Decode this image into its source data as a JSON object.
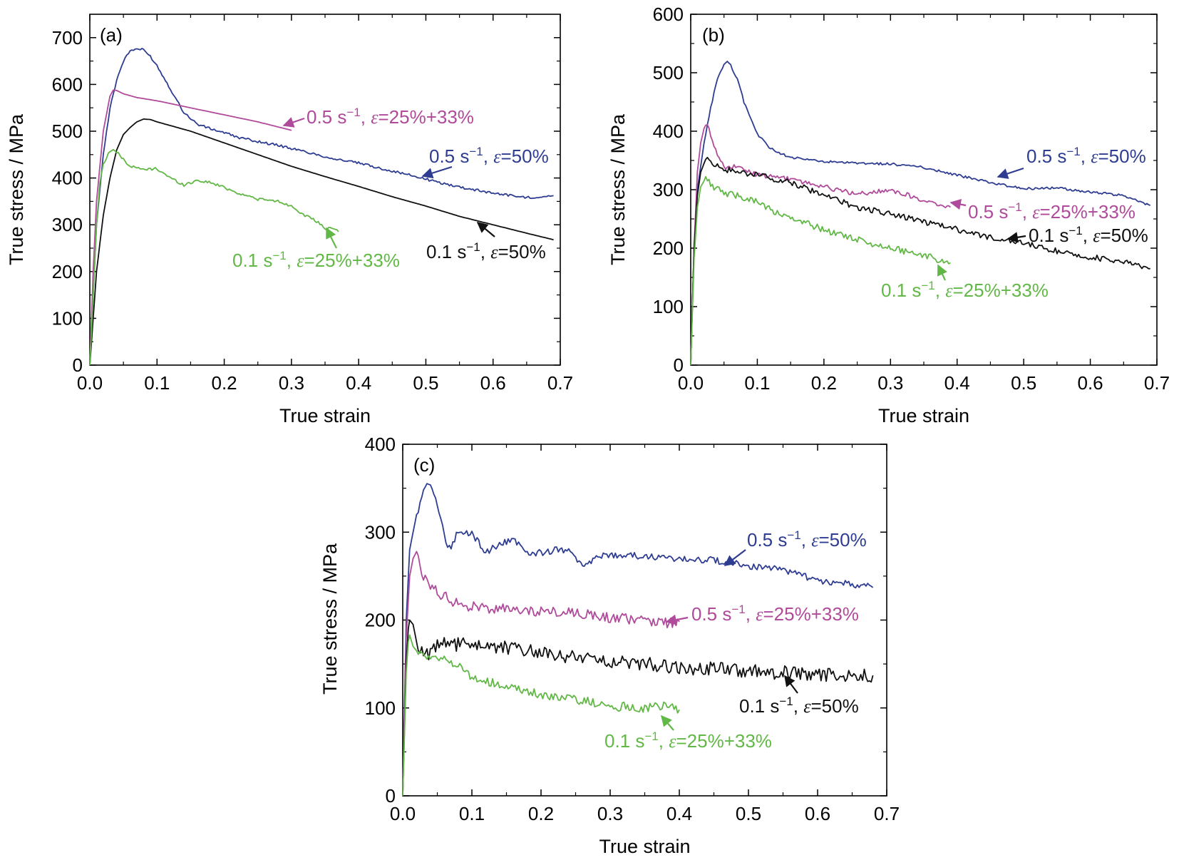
{
  "chart_data": [
    {
      "type": "line",
      "panel_label": "(a)",
      "xlabel": "True strain",
      "ylabel": "True stress / MPa",
      "xlim": [
        0,
        0.7
      ],
      "ylim": [
        0,
        750
      ],
      "xticks": [
        "0.0",
        "0.1",
        "0.2",
        "0.3",
        "0.4",
        "0.5",
        "0.6",
        "0.7"
      ],
      "yticks": [
        "0",
        "100",
        "200",
        "300",
        "400",
        "500",
        "600",
        "700"
      ],
      "grid": false,
      "series": [
        {
          "name": "0.5 s⁻¹, ε=50%",
          "color": "#2e3d92",
          "noise": 2.5,
          "x": [
            0,
            0.005,
            0.01,
            0.02,
            0.03,
            0.04,
            0.05,
            0.06,
            0.07,
            0.08,
            0.09,
            0.1,
            0.12,
            0.14,
            0.16,
            0.18,
            0.2,
            0.22,
            0.25,
            0.28,
            0.3,
            0.33,
            0.36,
            0.4,
            0.44,
            0.48,
            0.52,
            0.56,
            0.6,
            0.65,
            0.69
          ],
          "y": [
            0,
            150,
            300,
            450,
            550,
            610,
            650,
            672,
            676,
            674,
            660,
            640,
            590,
            540,
            515,
            505,
            497,
            487,
            478,
            470,
            463,
            453,
            442,
            432,
            418,
            405,
            390,
            378,
            368,
            358,
            362
          ]
        },
        {
          "name": "0.5 s⁻¹, ε=25%+33%",
          "color": "#b04a9a",
          "noise": 0,
          "x": [
            0,
            0.005,
            0.01,
            0.02,
            0.03,
            0.035,
            0.04,
            0.05,
            0.07,
            0.1,
            0.15,
            0.2,
            0.25,
            0.3
          ],
          "y": [
            0,
            200,
            350,
            500,
            575,
            588,
            587,
            580,
            572,
            565,
            550,
            535,
            520,
            502
          ]
        },
        {
          "name": "0.1 s⁻¹, ε=50%",
          "color": "#111111",
          "noise": 0,
          "x": [
            0,
            0.005,
            0.01,
            0.02,
            0.03,
            0.04,
            0.05,
            0.06,
            0.07,
            0.08,
            0.09,
            0.1,
            0.15,
            0.2,
            0.25,
            0.3,
            0.35,
            0.4,
            0.45,
            0.5,
            0.55,
            0.6,
            0.65,
            0.69
          ],
          "y": [
            0,
            100,
            200,
            320,
            400,
            460,
            493,
            508,
            520,
            526,
            525,
            520,
            500,
            475,
            450,
            425,
            403,
            382,
            360,
            340,
            318,
            300,
            282,
            268
          ]
        },
        {
          "name": "0.1 s⁻¹, ε=25%+33%",
          "color": "#62b846",
          "noise": 3,
          "x": [
            0,
            0.005,
            0.01,
            0.015,
            0.02,
            0.03,
            0.035,
            0.04,
            0.05,
            0.06,
            0.08,
            0.1,
            0.12,
            0.14,
            0.16,
            0.18,
            0.2,
            0.22,
            0.25,
            0.28,
            0.3,
            0.32,
            0.34,
            0.35,
            0.36,
            0.37
          ],
          "y": [
            0,
            150,
            300,
            390,
            430,
            458,
            460,
            455,
            440,
            425,
            418,
            420,
            400,
            385,
            395,
            390,
            380,
            368,
            355,
            350,
            340,
            320,
            305,
            290,
            295,
            285
          ]
        }
      ],
      "annotations": [
        {
          "text": "0.5 s⁻¹, ε=25%+33%",
          "color": "#b04a9a"
        },
        {
          "text": "0.5 s⁻¹, ε=50%",
          "color": "#2e3d92"
        },
        {
          "text": "0.1 s⁻¹, ε=50%",
          "color": "#111111"
        },
        {
          "text": "0.1 s⁻¹, ε=25%+33%",
          "color": "#62b846"
        }
      ]
    },
    {
      "type": "line",
      "panel_label": "(b)",
      "xlabel": "True strain",
      "ylabel": "True stress / MPa",
      "xlim": [
        0,
        0.7
      ],
      "ylim": [
        0,
        600
      ],
      "xticks": [
        "0.0",
        "0.1",
        "0.2",
        "0.3",
        "0.4",
        "0.5",
        "0.6",
        "0.7"
      ],
      "yticks": [
        "0",
        "100",
        "200",
        "300",
        "400",
        "500",
        "600"
      ],
      "grid": false,
      "series": [
        {
          "name": "0.5 s⁻¹, ε=50%",
          "color": "#2e3d92",
          "noise": 2,
          "x": [
            0,
            0.005,
            0.01,
            0.02,
            0.03,
            0.04,
            0.05,
            0.055,
            0.06,
            0.07,
            0.08,
            0.1,
            0.12,
            0.15,
            0.2,
            0.25,
            0.3,
            0.35,
            0.4,
            0.45,
            0.5,
            0.55,
            0.6,
            0.65,
            0.69
          ],
          "y": [
            0,
            200,
            300,
            380,
            440,
            490,
            515,
            518,
            512,
            490,
            450,
            395,
            370,
            355,
            348,
            345,
            344,
            338,
            325,
            312,
            302,
            303,
            296,
            290,
            273
          ]
        },
        {
          "name": "0.5 s⁻¹, ε=25%+33%",
          "color": "#b04a9a",
          "noise": 4,
          "x": [
            0,
            0.005,
            0.01,
            0.015,
            0.02,
            0.025,
            0.03,
            0.04,
            0.05,
            0.06,
            0.08,
            0.1,
            0.15,
            0.2,
            0.25,
            0.3,
            0.35,
            0.39
          ],
          "y": [
            0,
            200,
            330,
            380,
            405,
            410,
            395,
            360,
            338,
            340,
            335,
            325,
            318,
            305,
            292,
            300,
            282,
            270
          ]
        },
        {
          "name": "0.1 s⁻¹, ε=50%",
          "color": "#111111",
          "noise": 5,
          "x": [
            0,
            0.005,
            0.01,
            0.015,
            0.02,
            0.025,
            0.03,
            0.04,
            0.05,
            0.07,
            0.1,
            0.15,
            0.2,
            0.25,
            0.3,
            0.35,
            0.4,
            0.45,
            0.5,
            0.55,
            0.6,
            0.65,
            0.69
          ],
          "y": [
            0,
            200,
            290,
            330,
            345,
            352,
            348,
            340,
            335,
            330,
            325,
            312,
            290,
            270,
            258,
            245,
            232,
            218,
            208,
            195,
            185,
            177,
            165
          ]
        },
        {
          "name": "0.1 s⁻¹, ε=25%+33%",
          "color": "#62b846",
          "noise": 6,
          "x": [
            0,
            0.005,
            0.01,
            0.015,
            0.02,
            0.025,
            0.03,
            0.04,
            0.05,
            0.07,
            0.1,
            0.12,
            0.15,
            0.2,
            0.25,
            0.3,
            0.35,
            0.39
          ],
          "y": [
            0,
            180,
            270,
            305,
            315,
            318,
            310,
            300,
            295,
            290,
            280,
            265,
            250,
            232,
            215,
            200,
            188,
            175
          ]
        }
      ],
      "annotations": [
        {
          "text": "0.5 s⁻¹, ε=50%",
          "color": "#2e3d92"
        },
        {
          "text": "0.5 s⁻¹, ε=25%+33%",
          "color": "#b04a9a"
        },
        {
          "text": "0.1 s⁻¹, ε=50%",
          "color": "#111111"
        },
        {
          "text": "0.1 s⁻¹, ε=25%+33%",
          "color": "#62b846"
        }
      ]
    },
    {
      "type": "line",
      "panel_label": "(c)",
      "xlabel": "True strain",
      "ylabel": "True stress / MPa",
      "xlim": [
        0,
        0.7
      ],
      "ylim": [
        0,
        400
      ],
      "xticks": [
        "0.0",
        "0.1",
        "0.2",
        "0.3",
        "0.4",
        "0.5",
        "0.6",
        "0.7"
      ],
      "yticks": [
        "0",
        "100",
        "200",
        "300",
        "400"
      ],
      "grid": false,
      "series": [
        {
          "name": "0.5 s⁻¹, ε=50%",
          "color": "#2e3d92",
          "noise": 4,
          "x": [
            0,
            0.005,
            0.01,
            0.02,
            0.03,
            0.035,
            0.04,
            0.05,
            0.06,
            0.065,
            0.07,
            0.08,
            0.1,
            0.12,
            0.14,
            0.16,
            0.18,
            0.2,
            0.22,
            0.24,
            0.26,
            0.28,
            0.3,
            0.35,
            0.4,
            0.45,
            0.5,
            0.55,
            0.6,
            0.65,
            0.68
          ],
          "y": [
            0,
            200,
            280,
            320,
            345,
            355,
            352,
            330,
            300,
            280,
            285,
            300,
            298,
            278,
            285,
            292,
            278,
            276,
            280,
            278,
            260,
            270,
            275,
            272,
            270,
            268,
            262,
            258,
            245,
            240,
            237
          ]
        },
        {
          "name": "0.5 s⁻¹, ε=25%+33%",
          "color": "#b04a9a",
          "noise": 6,
          "x": [
            0,
            0.005,
            0.01,
            0.015,
            0.02,
            0.03,
            0.04,
            0.05,
            0.07,
            0.1,
            0.15,
            0.2,
            0.25,
            0.3,
            0.35,
            0.38,
            0.4
          ],
          "y": [
            0,
            180,
            250,
            270,
            278,
            250,
            238,
            232,
            222,
            215,
            212,
            210,
            208,
            203,
            200,
            197,
            198
          ]
        },
        {
          "name": "0.1 s⁻¹, ε=50%",
          "color": "#111111",
          "noise": 8,
          "x": [
            0,
            0.005,
            0.008,
            0.01,
            0.015,
            0.02,
            0.03,
            0.04,
            0.05,
            0.06,
            0.1,
            0.15,
            0.2,
            0.25,
            0.3,
            0.35,
            0.4,
            0.45,
            0.5,
            0.55,
            0.6,
            0.65,
            0.68
          ],
          "y": [
            0,
            150,
            190,
            200,
            195,
            175,
            165,
            160,
            170,
            172,
            172,
            168,
            163,
            158,
            153,
            150,
            146,
            145,
            142,
            140,
            138,
            137,
            137
          ]
        },
        {
          "name": "0.1 s⁻¹, ε=25%+33%",
          "color": "#62b846",
          "noise": 5,
          "x": [
            0,
            0.005,
            0.008,
            0.01,
            0.015,
            0.02,
            0.03,
            0.04,
            0.06,
            0.08,
            0.1,
            0.12,
            0.15,
            0.2,
            0.25,
            0.28,
            0.3,
            0.32,
            0.35,
            0.38,
            0.4
          ],
          "y": [
            0,
            140,
            175,
            183,
            170,
            165,
            160,
            158,
            155,
            148,
            135,
            130,
            125,
            115,
            110,
            105,
            100,
            102,
            100,
            102,
            98
          ]
        }
      ],
      "annotations": [
        {
          "text": "0.5 s⁻¹, ε=50%",
          "color": "#2e3d92"
        },
        {
          "text": "0.5 s⁻¹, ε=25%+33%",
          "color": "#b04a9a"
        },
        {
          "text": "0.1 s⁻¹, ε=50%",
          "color": "#111111"
        },
        {
          "text": "0.1 s⁻¹, ε=25%+33%",
          "color": "#62b846"
        }
      ]
    }
  ]
}
